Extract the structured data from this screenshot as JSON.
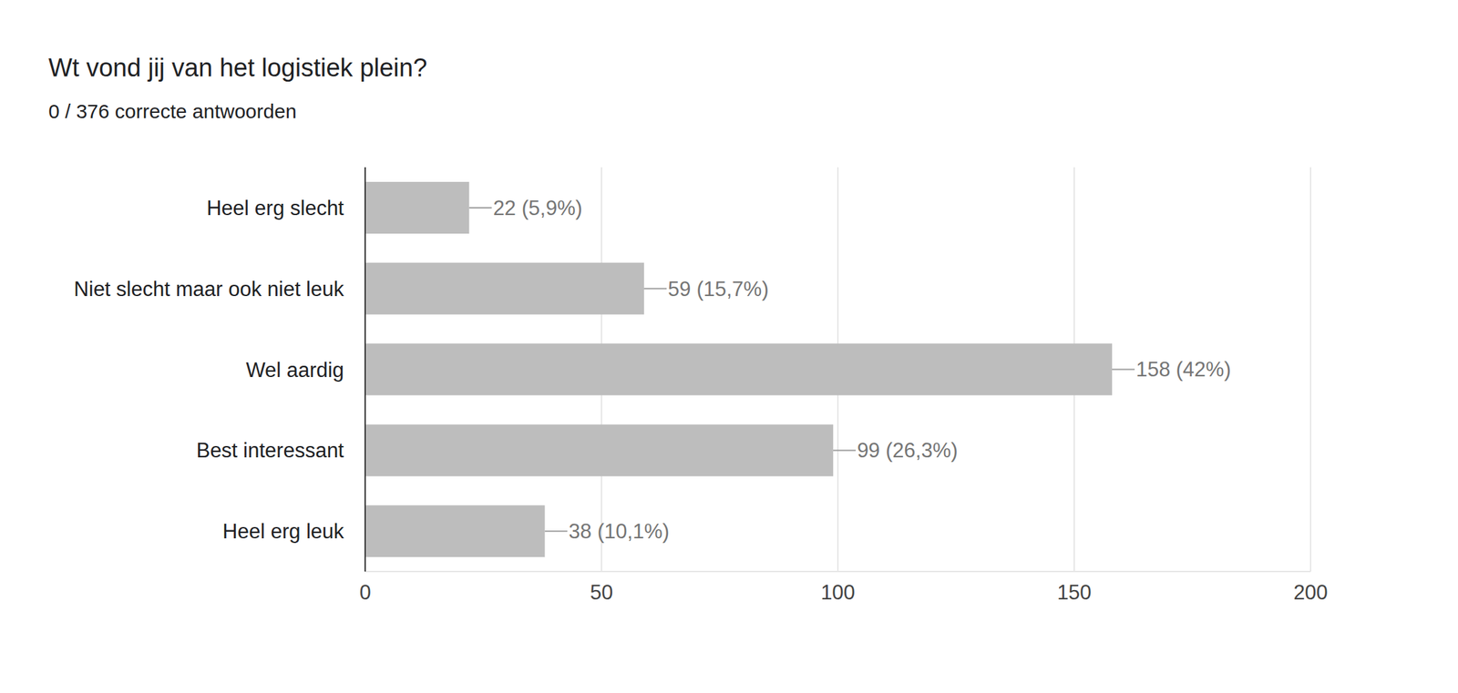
{
  "chart_data": {
    "type": "bar",
    "title": "Wt vond jij van het logistiek plein?",
    "subtitle": "0 / 376 correcte antwoorden",
    "categories": [
      "Heel erg slecht",
      "Niet slecht maar ook niet leuk",
      "Wel aardig",
      "Best interessant",
      "Heel erg leuk"
    ],
    "values": [
      22,
      59,
      158,
      99,
      38
    ],
    "value_labels": [
      "22 (5,9%)",
      "59 (15,7%)",
      "158 (42%)",
      "99 (26,3%)",
      "38 (10,1%)"
    ],
    "color": "#bdbdbd",
    "xlim": [
      0,
      200
    ],
    "xticks": [
      0,
      50,
      100,
      150,
      200
    ],
    "grid": true,
    "orientation": "horizontal",
    "data_labels": true
  }
}
